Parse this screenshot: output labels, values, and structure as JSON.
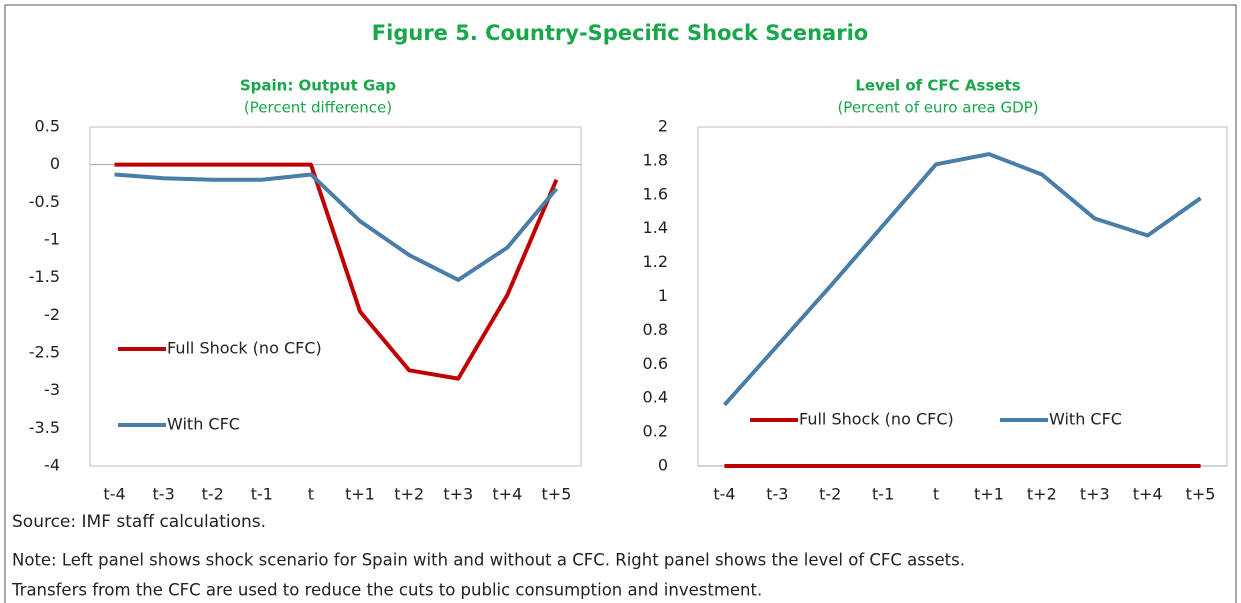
{
  "title": "Figure 5. Country-Specific Shock Scenario",
  "chart_data": [
    {
      "type": "line",
      "title": "Spain: Output Gap",
      "subtitle": "(Percent difference)",
      "categories": [
        "t-4",
        "t-3",
        "t-2",
        "t-1",
        "t",
        "t+1",
        "t+2",
        "t+3",
        "t+4",
        "t+5"
      ],
      "series": [
        {
          "name": "Full Shock (no CFC)",
          "color": "#c00000",
          "values": [
            0,
            0,
            0,
            0,
            0,
            -1.95,
            -2.73,
            -2.84,
            -1.73,
            -0.2
          ]
        },
        {
          "name": "With CFC",
          "color": "#4a7ea8",
          "values": [
            -0.13,
            -0.18,
            -0.2,
            -0.2,
            -0.13,
            -0.75,
            -1.2,
            -1.53,
            -1.1,
            -0.32
          ]
        }
      ],
      "ylim": [
        -4,
        0.5
      ],
      "yticks": [
        0.5,
        0,
        -0.5,
        -1,
        -1.5,
        -2,
        -2.5,
        -3,
        -3.5,
        -4
      ],
      "grid": false,
      "zero_line": true,
      "legend": "left"
    },
    {
      "type": "line",
      "title": "Level of CFC Assets",
      "subtitle": "(Percent of euro area GDP)",
      "categories": [
        "t-4",
        "t-3",
        "t-2",
        "t-1",
        "t",
        "t+1",
        "t+2",
        "t+3",
        "t+4",
        "t+5"
      ],
      "series": [
        {
          "name": "Full Shock (no CFC)",
          "color": "#c00000",
          "values": [
            0,
            0,
            0,
            0,
            0,
            0,
            0,
            0,
            0,
            0
          ]
        },
        {
          "name": "With CFC",
          "color": "#4a7ea8",
          "values": [
            0.36,
            0.71,
            1.06,
            1.42,
            1.78,
            1.84,
            1.72,
            1.46,
            1.36,
            1.58
          ]
        }
      ],
      "ylim": [
        0,
        2
      ],
      "yticks": [
        2,
        1.8,
        1.6,
        1.4,
        1.2,
        1,
        0.8,
        0.6,
        0.4,
        0.2,
        0
      ],
      "grid": false,
      "zero_line": false,
      "legend": "bottom"
    }
  ],
  "source": "Source: IMF staff calculations.",
  "note": [
    "Note: Left panel shows shock scenario for Spain with and without a CFC. Right panel shows the level of CFC assets.",
    "Transfers from the CFC are used to reduce the cuts to public consumption and investment."
  ]
}
